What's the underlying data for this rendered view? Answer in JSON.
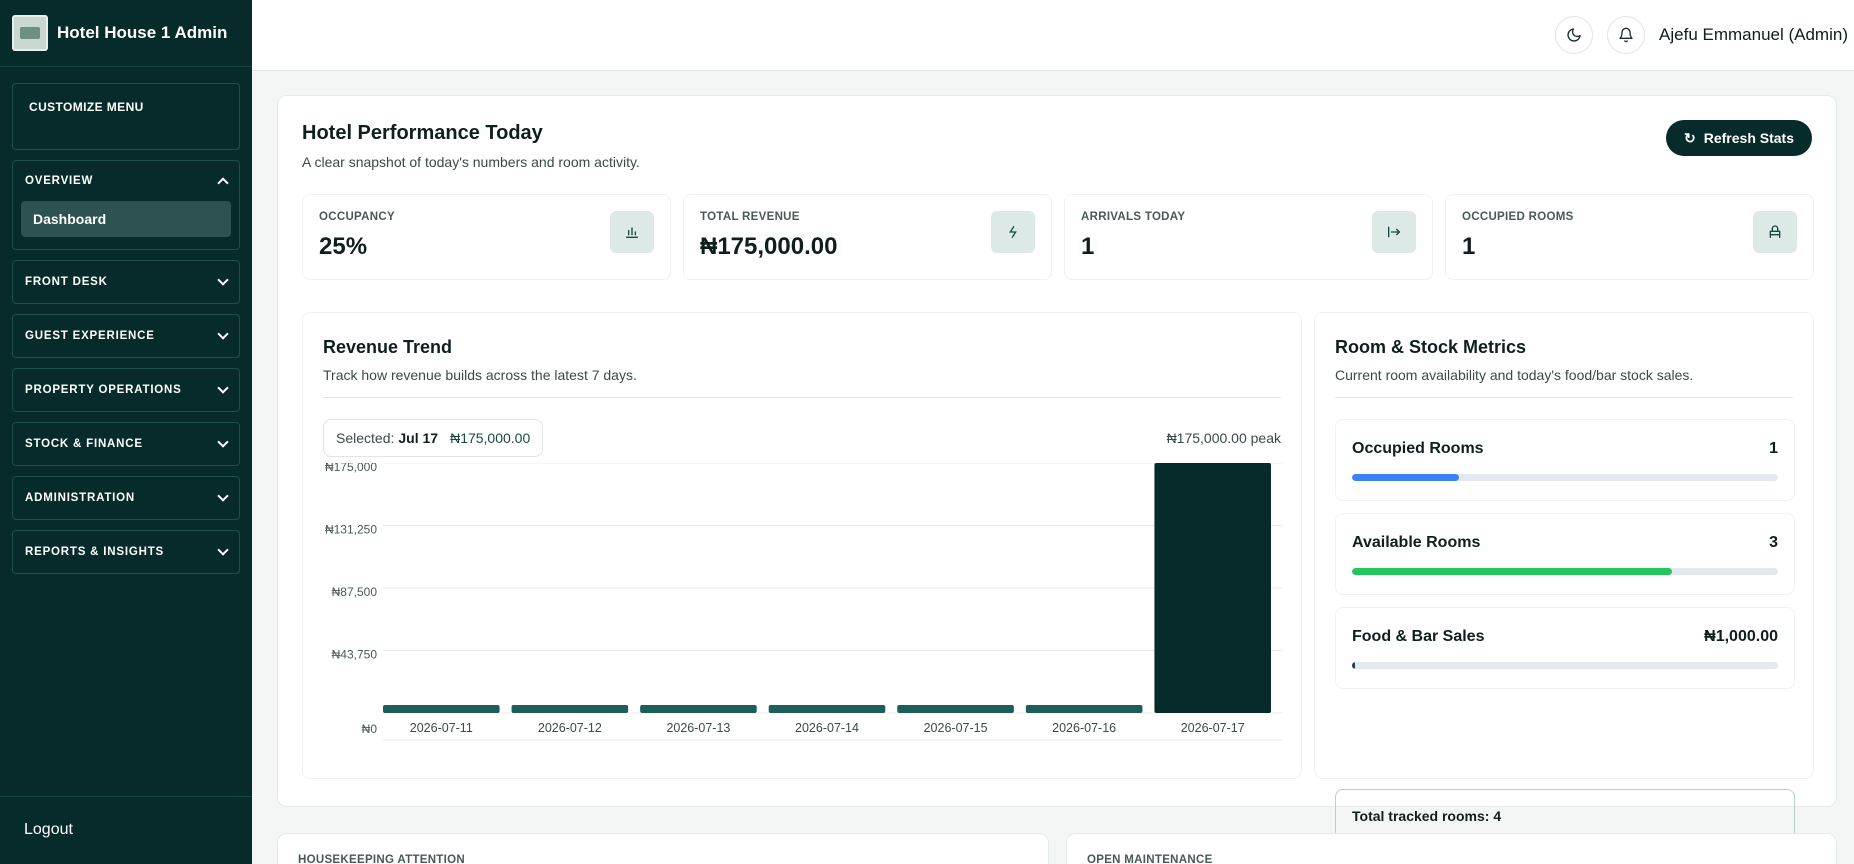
{
  "sidebar": {
    "brand": "Hotel House 1 Admin",
    "customize": "CUSTOMIZE MENU",
    "overview": {
      "label": "OVERVIEW",
      "item": "Dashboard"
    },
    "groups": [
      {
        "label": "FRONT DESK"
      },
      {
        "label": "GUEST EXPERIENCE"
      },
      {
        "label": "PROPERTY OPERATIONS"
      },
      {
        "label": "STOCK & FINANCE"
      },
      {
        "label": "ADMINISTRATION"
      },
      {
        "label": "REPORTS & INSIGHTS"
      }
    ],
    "logout": "Logout"
  },
  "topbar": {
    "user": "Ajefu Emmanuel (Admin)",
    "theme_icon": "moon-icon",
    "bell_icon": "bell-icon"
  },
  "performance": {
    "title": "Hotel Performance Today",
    "subtitle": "A clear snapshot of today's numbers and room activity.",
    "refresh": "Refresh Stats",
    "stats": [
      {
        "label": "OCCUPANCY",
        "value": "25%",
        "icon": "bar-chart-icon"
      },
      {
        "label": "TOTAL REVENUE",
        "value": "₦175,000.00",
        "icon": "currency-icon"
      },
      {
        "label": "ARRIVALS TODAY",
        "value": "1",
        "icon": "arrival-icon"
      },
      {
        "label": "OCCUPIED ROOMS",
        "value": "1",
        "icon": "bed-icon"
      }
    ]
  },
  "trend": {
    "title": "Revenue Trend",
    "subtitle": "Track how revenue builds across the latest 7 days.",
    "selected_label": "Selected:",
    "selected_date": "Jul 17",
    "selected_amount": "₦175,000.00",
    "peak": "₦175,000.00 peak"
  },
  "chart_data": {
    "type": "bar",
    "categories": [
      "2026-07-11",
      "2026-07-12",
      "2026-07-13",
      "2026-07-14",
      "2026-07-15",
      "2026-07-16",
      "2026-07-17"
    ],
    "values": [
      0,
      0,
      0,
      0,
      0,
      0,
      175000
    ],
    "y_ticks": [
      "₦175,000",
      "₦131,250",
      "₦87,500",
      "₦43,750",
      "₦0"
    ],
    "ylim": [
      0,
      175000
    ],
    "bar_color": "#062b2a",
    "grid": true
  },
  "metrics": {
    "title": "Room & Stock Metrics",
    "subtitle": "Current room availability and today's food/bar stock sales.",
    "items": [
      {
        "label": "Occupied Rooms",
        "value": "1",
        "fill": 0.25,
        "color": "#3b82f6"
      },
      {
        "label": "Available Rooms",
        "value": "3",
        "fill": 0.75,
        "color": "#22c55e"
      },
      {
        "label": "Food & Bar Sales",
        "value": "₦1,000.00",
        "fill": 0.006,
        "color": "#174744"
      }
    ],
    "tracked": "Total tracked rooms: 4"
  },
  "lower": {
    "housekeeping": "HOUSEKEEPING ATTENTION",
    "maintenance": "OPEN MAINTENANCE"
  }
}
